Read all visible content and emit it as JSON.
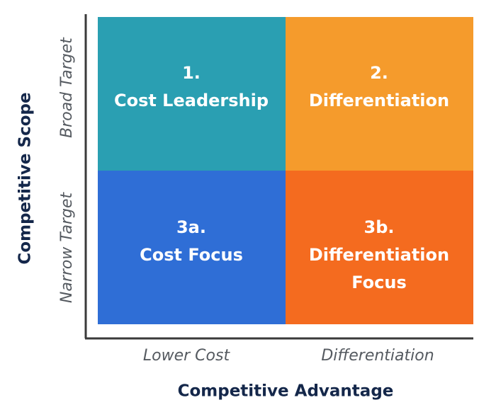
{
  "diagram": {
    "y_axis": {
      "title": "Competitive Scope",
      "labels": [
        "Broad Target",
        "Narrow Target"
      ]
    },
    "x_axis": {
      "title": "Competitive Advantage",
      "labels": [
        "Lower Cost",
        "Differentiation"
      ]
    },
    "quadrants": [
      {
        "number": "1.",
        "title": [
          "Cost Leadership"
        ]
      },
      {
        "number": "2.",
        "title": [
          "Differentiation"
        ]
      },
      {
        "number": "3a.",
        "title": [
          "Cost Focus"
        ]
      },
      {
        "number": "3b.",
        "title": [
          "Differentiation",
          "Focus"
        ]
      }
    ]
  }
}
